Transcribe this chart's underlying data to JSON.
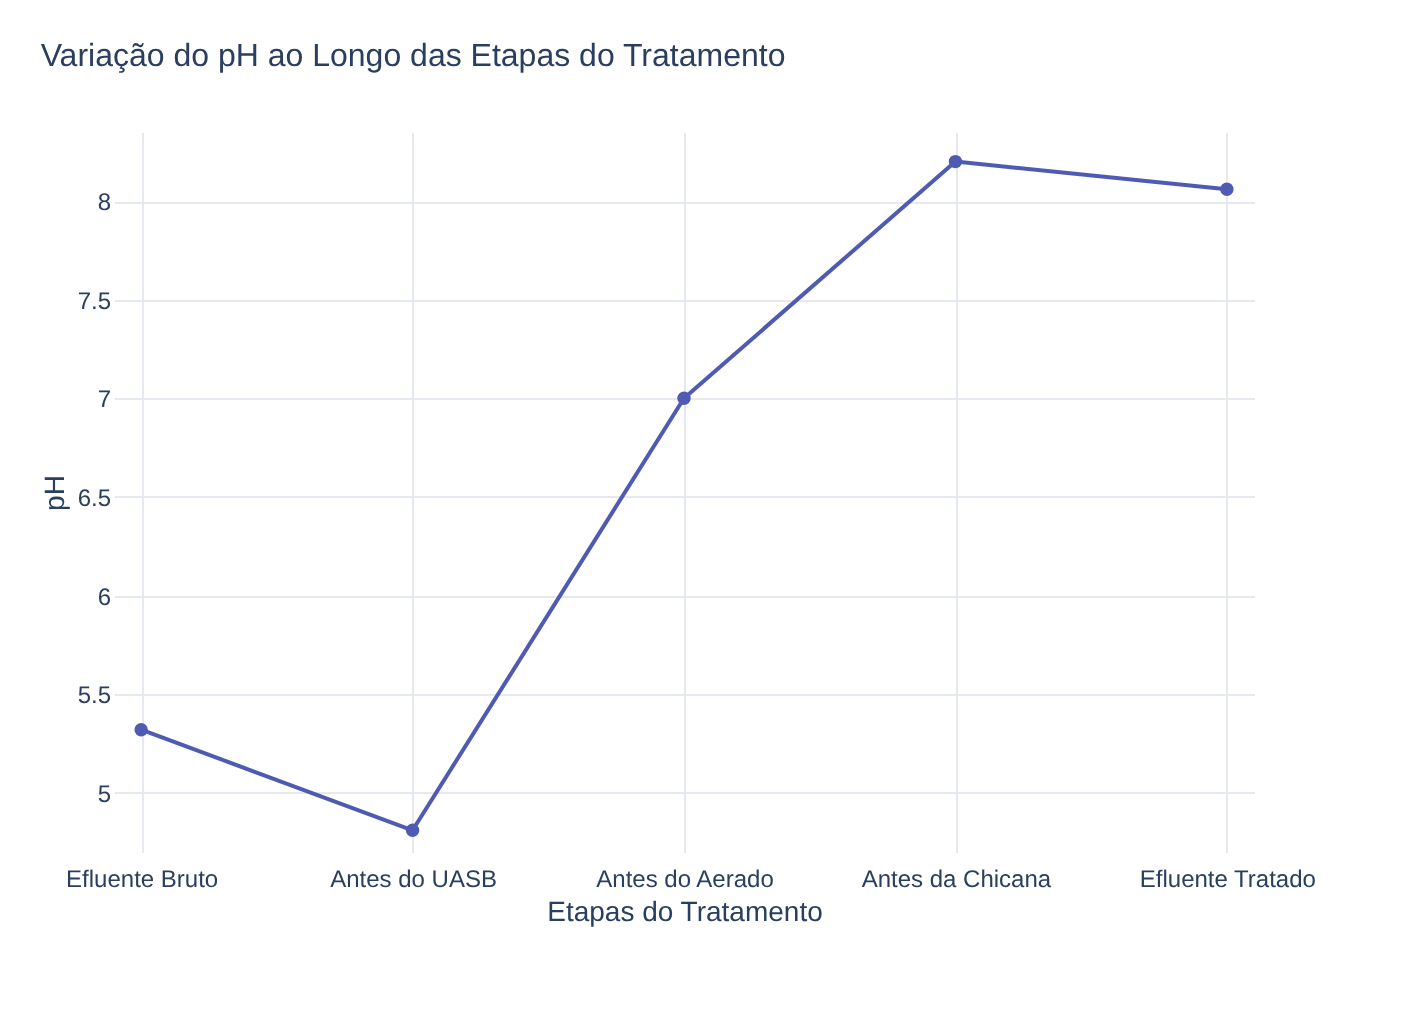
{
  "chart_data": {
    "type": "line",
    "title": "Variação do pH ao Longo das Etapas do Tratamento",
    "xlabel": "Etapas do Tratamento",
    "ylabel": "pH",
    "categories": [
      "Efluente Bruto",
      "Antes do UASB",
      "Antes do Aerado",
      "Antes da Chicana",
      "Efluente Tratado"
    ],
    "series": [
      {
        "color": "#4f5bb3",
        "values": [
          5.32,
          4.81,
          7.0,
          8.2,
          8.06
        ]
      }
    ],
    "ylim": [
      4.7,
      8.35
    ],
    "yticks": [
      5,
      5.5,
      6,
      6.5,
      7,
      7.5,
      8
    ],
    "grid": true,
    "marker": "circle",
    "line_style": "solid",
    "legend": false
  }
}
